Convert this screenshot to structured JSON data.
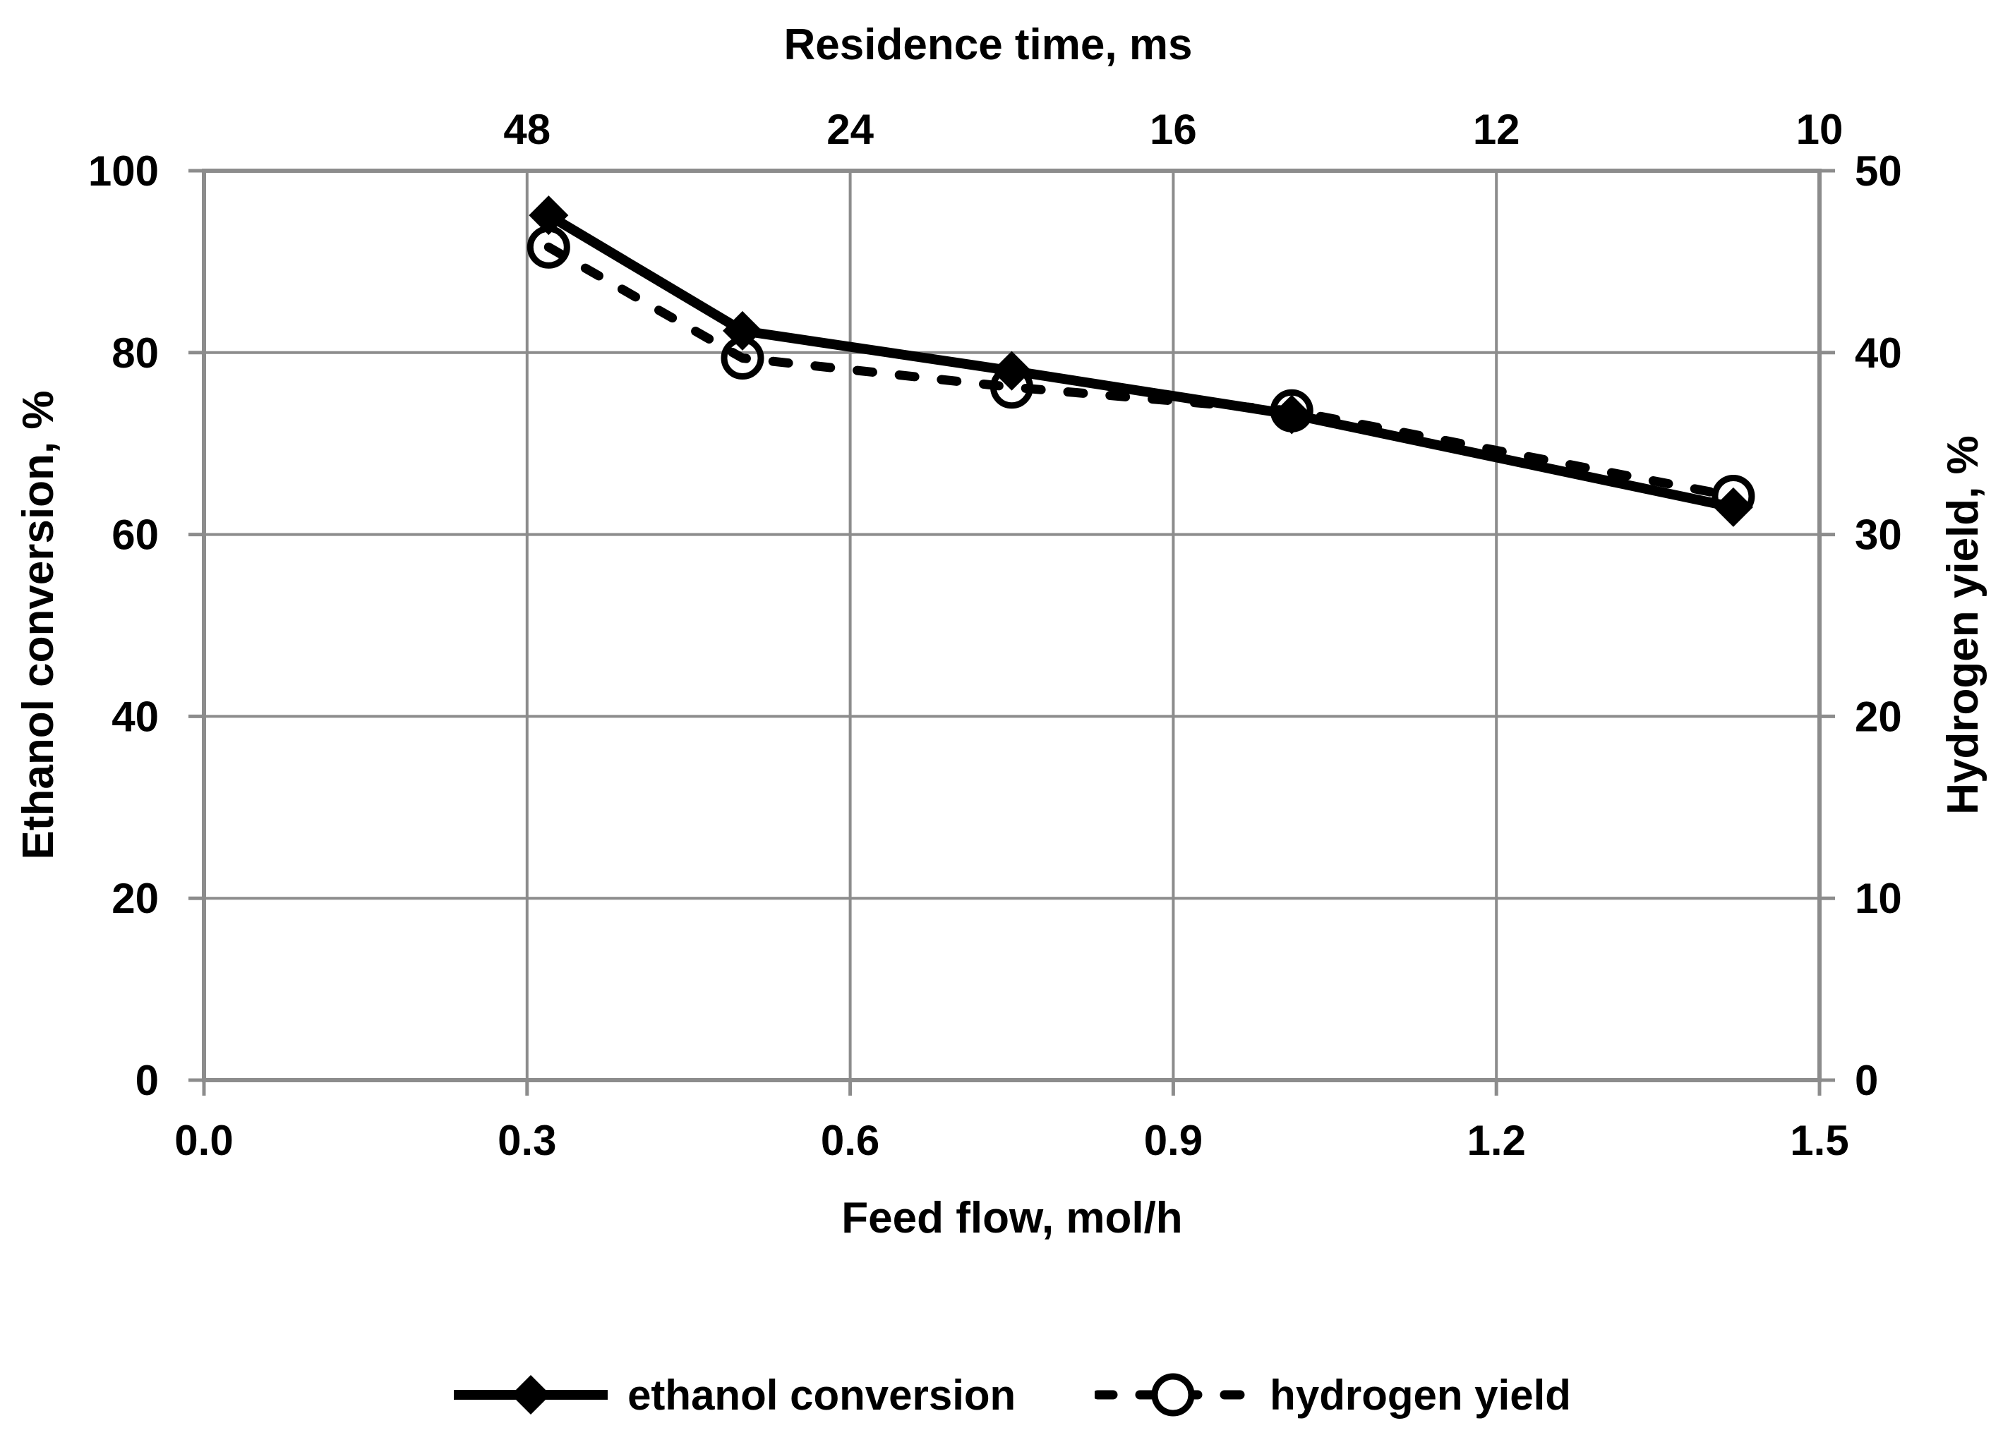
{
  "chart_data": {
    "type": "line",
    "top_axis": {
      "title": "Residence time, ms",
      "tick_labels": [
        "48",
        "24",
        "16",
        "12",
        "10"
      ],
      "tick_positions": [
        0.3,
        0.6,
        0.9,
        1.2,
        1.5
      ]
    },
    "x_axis": {
      "title": "Feed flow, mol/h",
      "min": 0.0,
      "max": 1.5,
      "tick_labels": [
        "0.0",
        "0.3",
        "0.6",
        "0.9",
        "1.2",
        "1.5"
      ],
      "tick_values": [
        0.0,
        0.3,
        0.6,
        0.9,
        1.2,
        1.5
      ]
    },
    "y_axis_left": {
      "title": "Ethanol conversion, %",
      "min": 0,
      "max": 100,
      "tick_labels": [
        "0",
        "20",
        "40",
        "60",
        "80",
        "100"
      ],
      "tick_values": [
        0,
        20,
        40,
        60,
        80,
        100
      ]
    },
    "y_axis_right": {
      "title": "Hydrogen yield, %",
      "min": 0,
      "max": 50,
      "tick_labels": [
        "0",
        "10",
        "20",
        "30",
        "40",
        "50"
      ],
      "tick_values": [
        0,
        10,
        20,
        30,
        40,
        50
      ]
    },
    "grid": true,
    "legend_position": "bottom",
    "series": [
      {
        "name": "ethanol conversion",
        "axis": "left",
        "line_style": "solid",
        "marker": "filled-diamond",
        "color": "#000000",
        "x": [
          0.32,
          0.5,
          0.75,
          1.01,
          1.42
        ],
        "y": [
          95.1,
          82.4,
          78.0,
          73.2,
          63.0
        ]
      },
      {
        "name": "hydrogen yield",
        "axis": "right",
        "line_style": "dashed",
        "marker": "open-circle",
        "color": "#000000",
        "x": [
          0.32,
          0.5,
          0.75,
          1.01,
          1.42
        ],
        "y": [
          45.8,
          39.7,
          38.1,
          36.8,
          32.1
        ]
      }
    ],
    "colors": {
      "series": "#000000",
      "grid": "#8c8c8c",
      "axis": "#8c8c8c",
      "background": "#ffffff"
    }
  }
}
